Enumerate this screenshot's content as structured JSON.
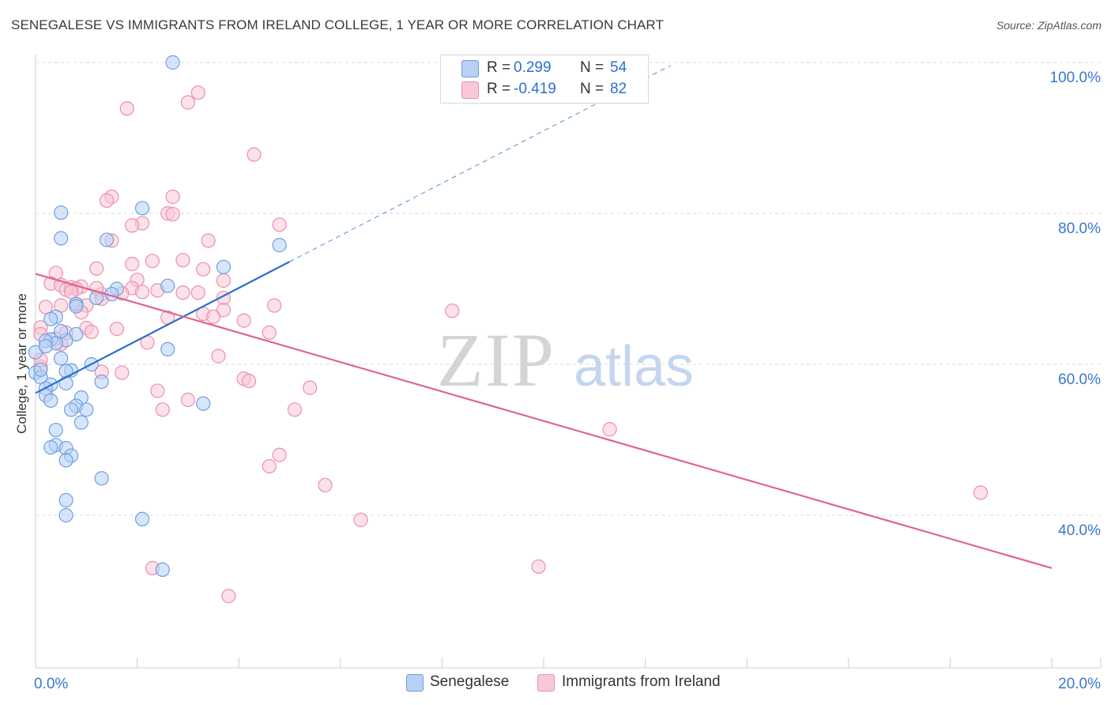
{
  "title": "SENEGALESE VS IMMIGRANTS FROM IRELAND COLLEGE, 1 YEAR OR MORE CORRELATION CHART",
  "source": "Source: ZipAtlas.com",
  "watermark": {
    "zip": "ZIP",
    "atlas": "atlas"
  },
  "legend_top": {
    "rows": [
      {
        "label": "R =",
        "r": "0.299",
        "n_label": "N =",
        "n": "54",
        "color": "#9bbdf0"
      },
      {
        "label": "R =",
        "r": "-0.419",
        "n_label": "N =",
        "n": "82",
        "color": "#f4a9c0"
      }
    ]
  },
  "legend_bottom": [
    {
      "label": "Senegalese",
      "color": "#9bbdf0"
    },
    {
      "label": "Immigrants from Ireland",
      "color": "#f4a9c0"
    }
  ],
  "colors": {
    "blue_fill": "#b7d0f5",
    "blue_stroke": "#6f9fe0",
    "blue_line": "#2a6fce",
    "pink_fill": "#f8c8d6",
    "pink_stroke": "#ec8fae",
    "pink_line": "#e0648f",
    "axis_text": "#3a77d0",
    "grid": "#d8d8d8"
  },
  "chart_data": {
    "type": "scatter",
    "title": "SENEGALESE VS IMMIGRANTS FROM IRELAND COLLEGE, 1 YEAR OR MORE CORRELATION CHART",
    "xlabel": "",
    "ylabel": "College, 1 year or more",
    "xlim": [
      0,
      20
    ],
    "ylim": [
      20,
      103
    ],
    "x_tick_labels": [
      {
        "value": 0,
        "label": "0.0%"
      },
      {
        "value": 20,
        "label": "20.0%"
      }
    ],
    "y_tick_labels": [
      {
        "value": 100,
        "label": "100.0%"
      },
      {
        "value": 80,
        "label": "80.0%"
      },
      {
        "value": 60,
        "label": "60.0%"
      },
      {
        "value": 40,
        "label": "40.0%"
      }
    ],
    "series": [
      {
        "name": "Senegalese",
        "r": 0.299,
        "n": 54,
        "trend": {
          "x0": 0.0,
          "y0": 56.2,
          "x1": 5.0,
          "y1": 73.6,
          "dash_to_x": 12.5,
          "dash_to_y": 99.6
        },
        "points": [
          [
            2.7,
            100.0
          ],
          [
            0.5,
            80.1
          ],
          [
            2.1,
            80.7
          ],
          [
            0.5,
            76.7
          ],
          [
            1.4,
            76.5
          ],
          [
            4.8,
            75.8
          ],
          [
            3.7,
            72.9
          ],
          [
            1.6,
            70.0
          ],
          [
            2.6,
            70.4
          ],
          [
            1.5,
            69.3
          ],
          [
            0.8,
            68.0
          ],
          [
            0.8,
            67.7
          ],
          [
            0.4,
            66.3
          ],
          [
            0.3,
            66.0
          ],
          [
            0.8,
            64.0
          ],
          [
            0.6,
            63.2
          ],
          [
            0.3,
            63.3
          ],
          [
            0.4,
            62.8
          ],
          [
            0.2,
            63.1
          ],
          [
            2.6,
            62.0
          ],
          [
            0.5,
            60.8
          ],
          [
            0.0,
            61.6
          ],
          [
            1.1,
            60.0
          ],
          [
            0.7,
            59.2
          ],
          [
            0.6,
            59.1
          ],
          [
            0.0,
            58.9
          ],
          [
            0.1,
            58.3
          ],
          [
            1.3,
            57.7
          ],
          [
            0.3,
            57.3
          ],
          [
            0.2,
            56.8
          ],
          [
            0.2,
            55.9
          ],
          [
            0.9,
            55.6
          ],
          [
            0.3,
            55.2
          ],
          [
            0.8,
            54.5
          ],
          [
            0.7,
            54.0
          ],
          [
            1.0,
            54.0
          ],
          [
            3.3,
            54.8
          ],
          [
            0.9,
            52.3
          ],
          [
            0.4,
            51.3
          ],
          [
            0.4,
            49.3
          ],
          [
            0.3,
            49.0
          ],
          [
            0.6,
            48.9
          ],
          [
            0.7,
            47.9
          ],
          [
            0.6,
            47.3
          ],
          [
            1.3,
            44.9
          ],
          [
            0.6,
            42.0
          ],
          [
            0.6,
            40.0
          ],
          [
            2.1,
            39.5
          ],
          [
            2.5,
            32.8
          ],
          [
            0.1,
            59.3
          ],
          [
            0.5,
            64.4
          ],
          [
            1.2,
            68.8
          ],
          [
            0.2,
            62.4
          ],
          [
            0.6,
            57.5
          ]
        ]
      },
      {
        "name": "Immigrants from Ireland",
        "r": -0.419,
        "n": 82,
        "trend": {
          "x0": 0.0,
          "y0": 72.0,
          "x1": 20.0,
          "y1": 33.0
        },
        "points": [
          [
            3.2,
            96.0
          ],
          [
            3.0,
            94.7
          ],
          [
            1.8,
            93.9
          ],
          [
            4.3,
            87.8
          ],
          [
            1.5,
            82.2
          ],
          [
            2.7,
            82.2
          ],
          [
            1.4,
            81.7
          ],
          [
            2.6,
            80.0
          ],
          [
            2.7,
            79.9
          ],
          [
            2.1,
            78.7
          ],
          [
            1.9,
            78.4
          ],
          [
            4.8,
            78.5
          ],
          [
            1.5,
            76.4
          ],
          [
            3.4,
            76.4
          ],
          [
            2.3,
            73.7
          ],
          [
            2.9,
            73.8
          ],
          [
            1.9,
            73.3
          ],
          [
            1.2,
            72.7
          ],
          [
            0.4,
            72.1
          ],
          [
            3.3,
            72.6
          ],
          [
            2.0,
            71.2
          ],
          [
            3.7,
            71.1
          ],
          [
            0.3,
            70.7
          ],
          [
            0.5,
            70.5
          ],
          [
            0.9,
            70.3
          ],
          [
            0.7,
            70.2
          ],
          [
            0.8,
            70.0
          ],
          [
            0.6,
            69.9
          ],
          [
            0.7,
            69.6
          ],
          [
            1.9,
            70.1
          ],
          [
            2.4,
            69.8
          ],
          [
            2.1,
            69.6
          ],
          [
            2.9,
            69.5
          ],
          [
            3.2,
            69.5
          ],
          [
            1.3,
            69.3
          ],
          [
            1.7,
            69.4
          ],
          [
            1.3,
            68.7
          ],
          [
            3.7,
            68.8
          ],
          [
            0.8,
            68.0
          ],
          [
            0.5,
            67.8
          ],
          [
            0.2,
            67.6
          ],
          [
            1.0,
            67.8
          ],
          [
            4.7,
            67.8
          ],
          [
            3.7,
            67.2
          ],
          [
            0.9,
            66.9
          ],
          [
            3.3,
            66.7
          ],
          [
            3.5,
            66.3
          ],
          [
            2.6,
            66.2
          ],
          [
            4.1,
            65.8
          ],
          [
            0.1,
            64.9
          ],
          [
            1.0,
            64.8
          ],
          [
            1.6,
            64.7
          ],
          [
            1.1,
            64.3
          ],
          [
            4.6,
            64.2
          ],
          [
            0.1,
            64.0
          ],
          [
            0.4,
            63.4
          ],
          [
            2.2,
            62.9
          ],
          [
            0.5,
            62.7
          ],
          [
            3.6,
            61.1
          ],
          [
            0.1,
            59.7
          ],
          [
            0.1,
            60.6
          ],
          [
            1.3,
            59.0
          ],
          [
            1.7,
            58.9
          ],
          [
            4.1,
            58.1
          ],
          [
            4.2,
            57.8
          ],
          [
            5.4,
            56.9
          ],
          [
            2.4,
            56.5
          ],
          [
            8.2,
            67.1
          ],
          [
            3.0,
            55.3
          ],
          [
            2.5,
            54.0
          ],
          [
            5.1,
            54.0
          ],
          [
            11.3,
            51.4
          ],
          [
            4.8,
            48.0
          ],
          [
            4.6,
            46.5
          ],
          [
            5.7,
            44.0
          ],
          [
            6.4,
            39.4
          ],
          [
            18.6,
            43.0
          ],
          [
            9.9,
            33.2
          ],
          [
            2.3,
            33.0
          ],
          [
            3.8,
            29.3
          ],
          [
            1.2,
            70.1
          ],
          [
            0.6,
            64.2
          ]
        ]
      }
    ]
  }
}
